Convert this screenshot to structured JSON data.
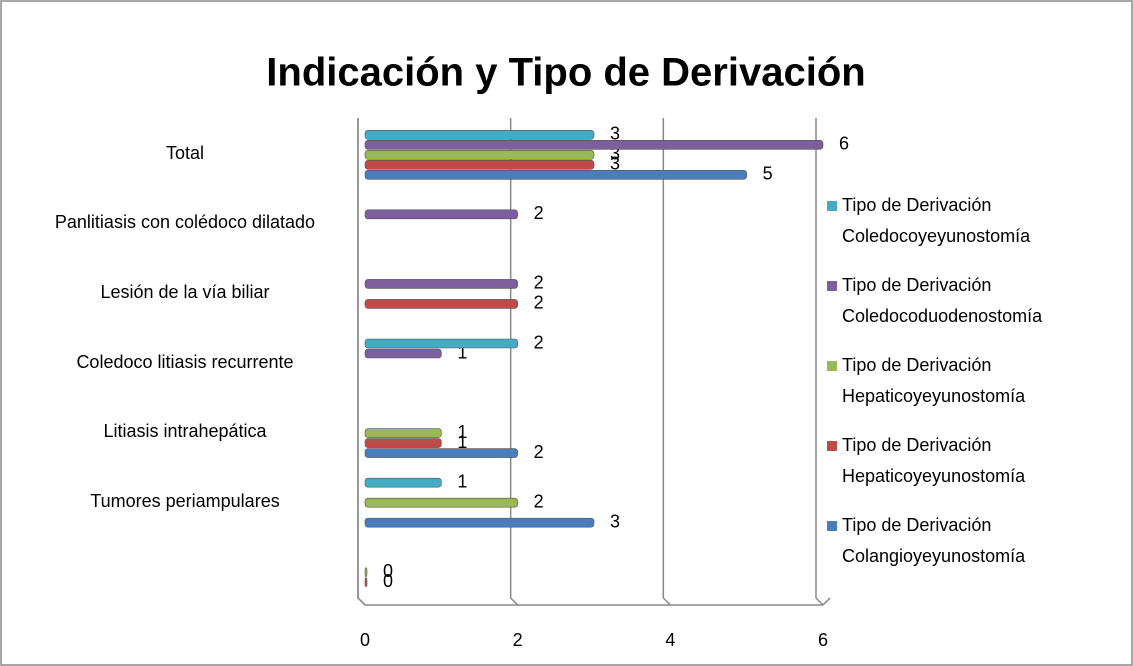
{
  "chart_data": {
    "type": "bar",
    "orientation": "horizontal",
    "title": "Indicación y Tipo de Derivación",
    "categories": [
      null,
      "Tumores periampulares",
      "Litiasis intrahepática",
      "Coledoco litiasis recurrente",
      "Lesión de la vía biliar",
      "Panlitiasis con colédoco dilatado",
      "Total"
    ],
    "series": [
      {
        "name": "Tipo de Derivación Colangioyeyunostomía",
        "color": "#4a7ebb",
        "values": [
          null,
          3,
          2,
          null,
          null,
          null,
          5
        ]
      },
      {
        "name": "Tipo de Derivación Hepaticoyeyunostomía",
        "color": "#be4b48",
        "values": [
          0,
          null,
          1,
          null,
          2,
          null,
          3
        ]
      },
      {
        "name": "Tipo de Derivación Hepaticoyeyunostomía",
        "color": "#98b954",
        "values": [
          0,
          2,
          1,
          null,
          null,
          null,
          3
        ]
      },
      {
        "name": "Tipo de Derivación Coledocoduodenostomía",
        "color": "#7d5fa0",
        "values": [
          null,
          null,
          null,
          1,
          2,
          2,
          6
        ]
      },
      {
        "name": "Tipo de Derivación Coledocoyeyunostomía",
        "color": "#46aac5",
        "values": [
          null,
          1,
          null,
          2,
          null,
          null,
          3
        ]
      }
    ],
    "xlim": [
      0,
      6
    ],
    "xticks": [
      0,
      2,
      4,
      6
    ],
    "grid": true,
    "legend": "right"
  }
}
